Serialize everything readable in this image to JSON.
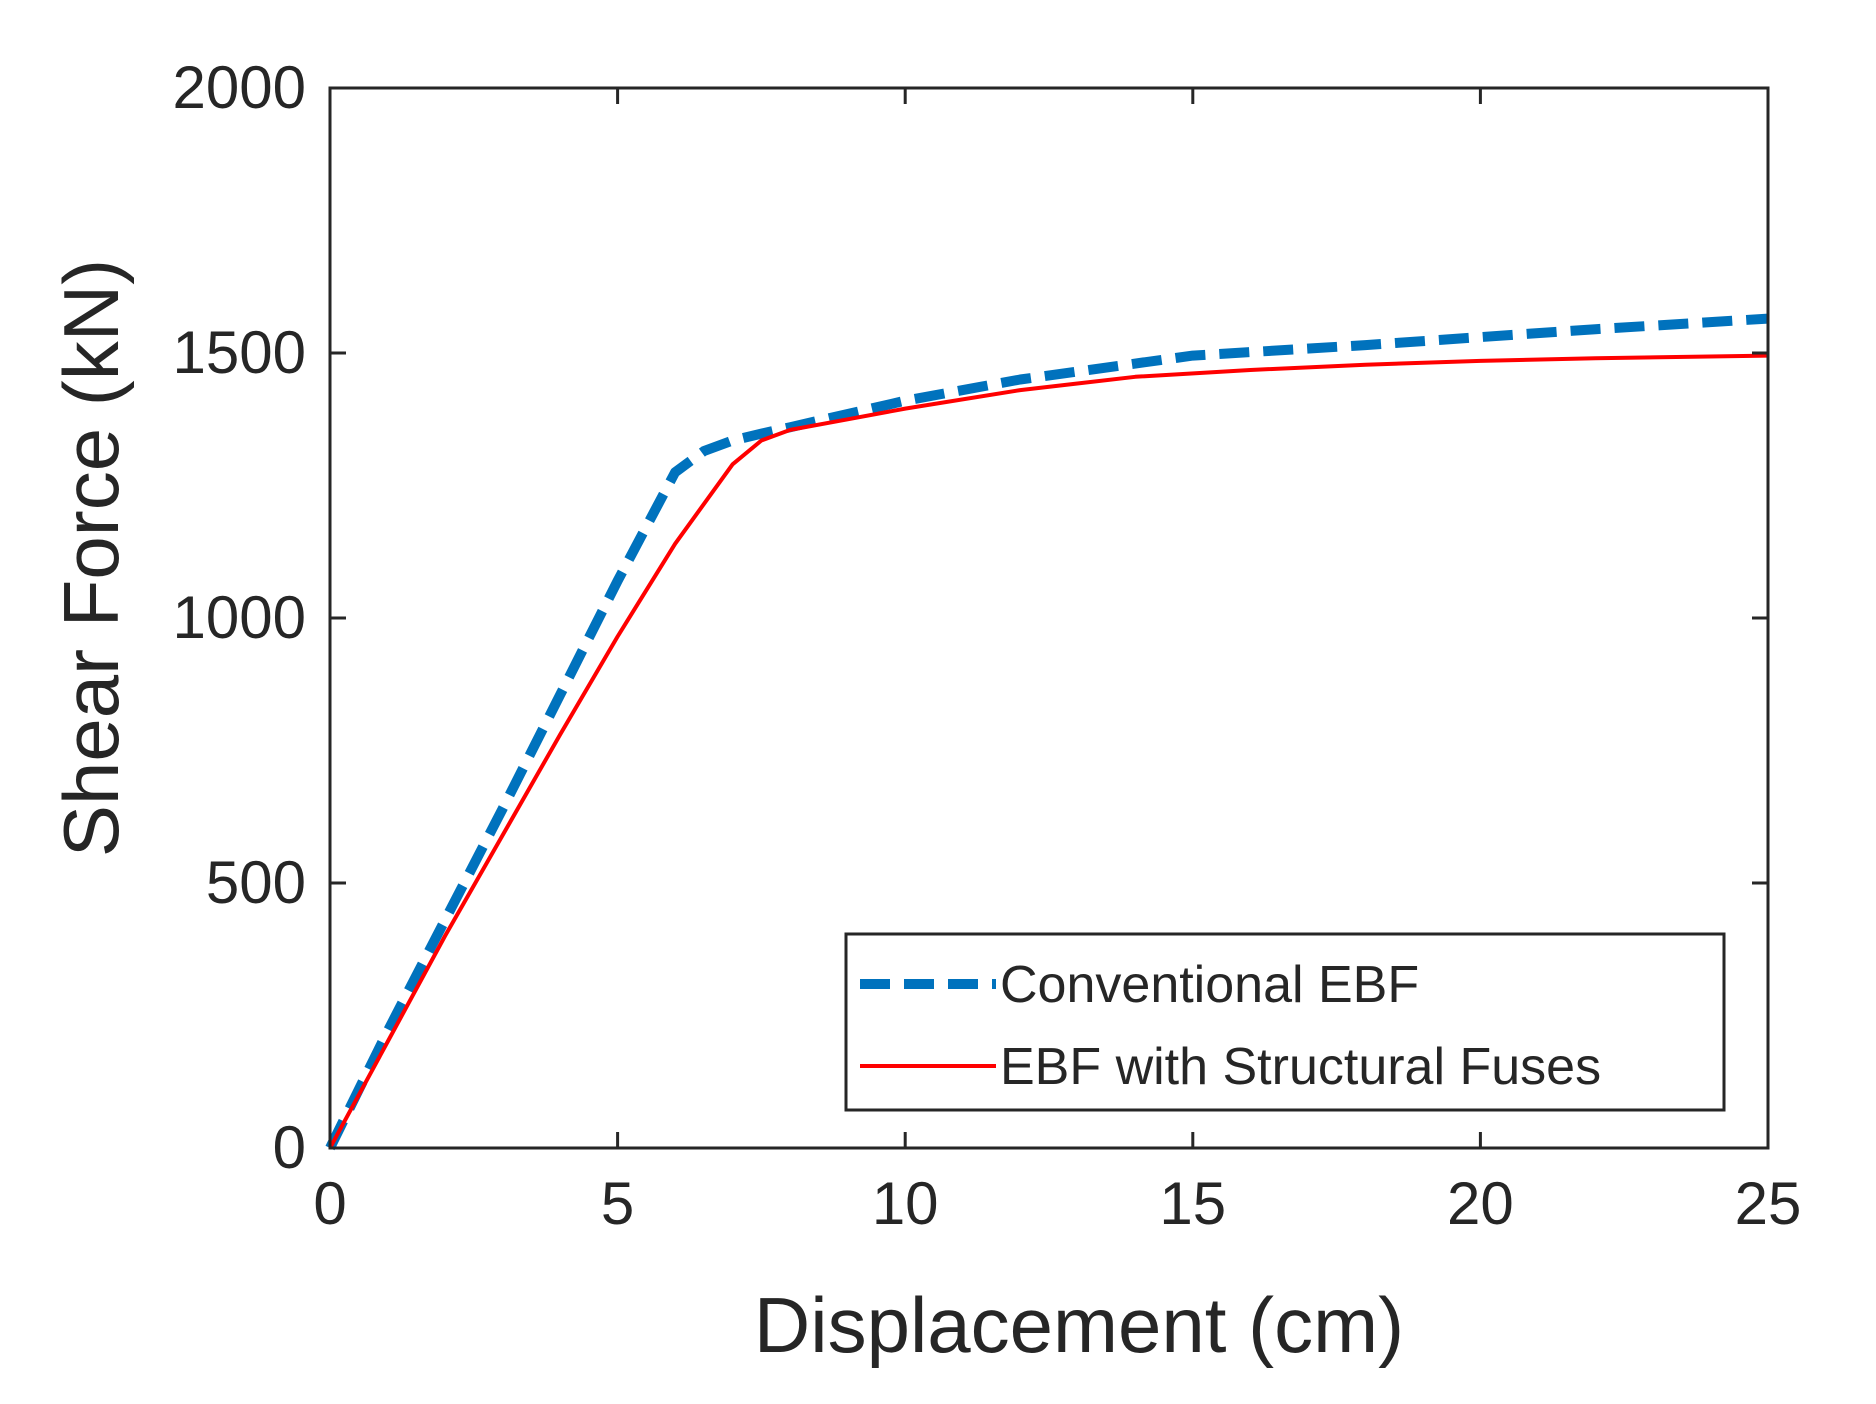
{
  "chart_data": {
    "type": "line",
    "title": "",
    "xlabel": "Displacement (cm)",
    "ylabel": "Shear Force (kN)",
    "xlim": [
      0,
      25
    ],
    "ylim": [
      0,
      2000
    ],
    "xticks": [
      "0",
      "5",
      "10",
      "15",
      "20",
      "25"
    ],
    "yticks": [
      "0",
      "500",
      "1000",
      "1500",
      "2000"
    ],
    "grid": false,
    "legend_position": "bottom-right",
    "series": [
      {
        "name": "Conventional EBF",
        "color": "#0072BD",
        "style": "dashed",
        "x": [
          0,
          1,
          2,
          3,
          4,
          5,
          6,
          6.5,
          7,
          7.5,
          8,
          9,
          10,
          12,
          15,
          18,
          20,
          22,
          25
        ],
        "y": [
          0,
          220,
          430,
          640,
          855,
          1070,
          1275,
          1315,
          1335,
          1348,
          1360,
          1385,
          1410,
          1450,
          1495,
          1515,
          1530,
          1545,
          1565
        ]
      },
      {
        "name": "EBF with Structural Fuses",
        "color": "#FF0000",
        "style": "solid",
        "x": [
          0,
          1,
          2,
          3,
          4,
          5,
          6,
          7,
          7.5,
          8,
          9,
          10,
          12,
          14,
          16,
          18,
          20,
          22,
          25
        ],
        "y": [
          0,
          200,
          400,
          590,
          780,
          965,
          1140,
          1290,
          1335,
          1355,
          1375,
          1395,
          1430,
          1455,
          1468,
          1478,
          1485,
          1490,
          1495
        ]
      }
    ]
  }
}
